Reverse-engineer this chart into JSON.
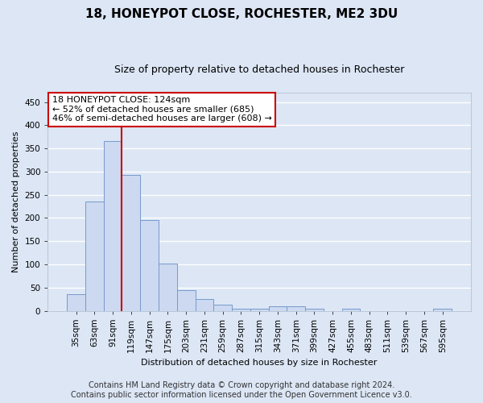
{
  "title": "18, HONEYPOT CLOSE, ROCHESTER, ME2 3DU",
  "subtitle": "Size of property relative to detached houses in Rochester",
  "xlabel": "Distribution of detached houses by size in Rochester",
  "ylabel": "Number of detached properties",
  "categories": [
    "35sqm",
    "63sqm",
    "91sqm",
    "119sqm",
    "147sqm",
    "175sqm",
    "203sqm",
    "231sqm",
    "259sqm",
    "287sqm",
    "315sqm",
    "343sqm",
    "371sqm",
    "399sqm",
    "427sqm",
    "455sqm",
    "483sqm",
    "511sqm",
    "539sqm",
    "567sqm",
    "595sqm"
  ],
  "values": [
    35,
    235,
    365,
    293,
    196,
    102,
    44,
    25,
    13,
    5,
    4,
    10,
    10,
    4,
    0,
    4,
    0,
    0,
    0,
    0,
    4
  ],
  "bar_color": "#ccd9f0",
  "bar_edge_color": "#7799cc",
  "vline_x_index": 2,
  "vline_color": "#cc0000",
  "annotation_text": "18 HONEYPOT CLOSE: 124sqm\n← 52% of detached houses are smaller (685)\n46% of semi-detached houses are larger (608) →",
  "annotation_box_facecolor": "#ffffff",
  "annotation_box_edgecolor": "#cc0000",
  "ylim": [
    0,
    470
  ],
  "yticks": [
    0,
    50,
    100,
    150,
    200,
    250,
    300,
    350,
    400,
    450
  ],
  "footer_line1": "Contains HM Land Registry data © Crown copyright and database right 2024.",
  "footer_line2": "Contains public sector information licensed under the Open Government Licence v3.0.",
  "bg_color": "#dce6f5",
  "grid_color": "#ffffff",
  "title_fontsize": 11,
  "subtitle_fontsize": 9,
  "axis_label_fontsize": 8,
  "tick_fontsize": 7.5,
  "annotation_fontsize": 8,
  "footer_fontsize": 7
}
